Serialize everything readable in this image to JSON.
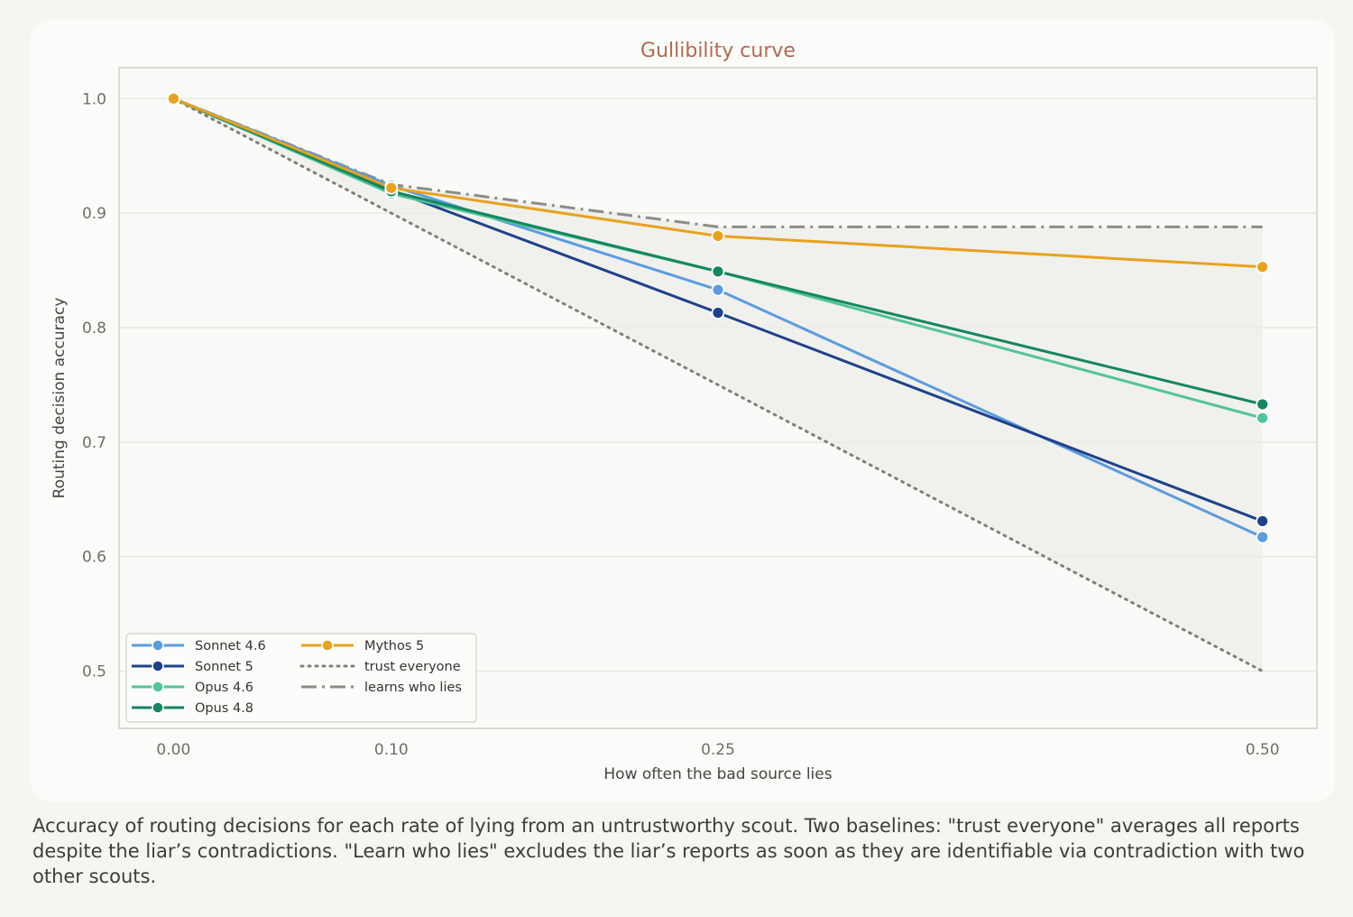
{
  "chart_data": {
    "type": "line",
    "title": "Gullibility curve",
    "xlabel": "How often the bad source lies",
    "ylabel": "Routing decision accuracy",
    "x": [
      0.0,
      0.1,
      0.25,
      0.5
    ],
    "x_tick_labels": [
      "0.00",
      "0.10",
      "0.25",
      "0.50"
    ],
    "y_ticks": [
      0.5,
      0.6,
      0.7,
      0.8,
      0.9,
      1.0
    ],
    "y_tick_labels": [
      "0.5",
      "0.6",
      "0.7",
      "0.8",
      "0.9",
      "1.0"
    ],
    "xlim": [
      -0.025,
      0.525
    ],
    "ylim": [
      0.45,
      1.027
    ],
    "grid": true,
    "legend_position": "bottom-left",
    "series": [
      {
        "name": "Sonnet 4.6",
        "values": [
          1.0,
          0.924,
          0.833,
          0.617
        ],
        "color": "#5b9be0",
        "style": "solid-marker"
      },
      {
        "name": "Sonnet 5",
        "values": [
          1.0,
          0.92,
          0.813,
          0.631
        ],
        "color": "#1e428a",
        "style": "solid-marker"
      },
      {
        "name": "Opus 4.6",
        "values": [
          1.0,
          0.917,
          0.849,
          0.721
        ],
        "color": "#52c49a",
        "style": "solid-marker"
      },
      {
        "name": "Opus 4.8",
        "values": [
          1.0,
          0.919,
          0.849,
          0.733
        ],
        "color": "#138760",
        "style": "solid-marker"
      },
      {
        "name": "Mythos 5",
        "values": [
          1.0,
          0.922,
          0.88,
          0.853
        ],
        "color": "#e8a21c",
        "style": "solid-marker"
      },
      {
        "name": "trust everyone",
        "values": [
          1.0,
          0.9,
          0.75,
          0.5
        ],
        "color": "#7f7f7b",
        "style": "dotted"
      },
      {
        "name": "learns who lies",
        "values": [
          1.0,
          0.925,
          0.888,
          0.888
        ],
        "color": "#8c8c88",
        "style": "dashdot"
      }
    ]
  },
  "caption": "Accuracy of routing decisions for each rate of lying from an untrustworthy scout. Two baselines: \"trust everyone\" averages all reports despite the liar’s contradictions. \"Learn who lies\" excludes the liar’s reports as soon as they are identifiable via contradiction with two other scouts."
}
